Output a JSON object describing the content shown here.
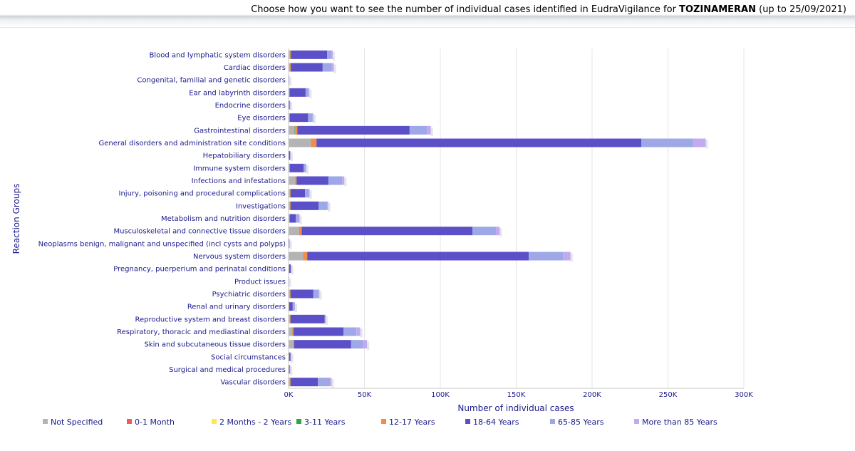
{
  "header": {
    "title_prefix": "Choose how you want to see the number of individual cases identified in EudraVigilance for ",
    "title_product": "TOZINAMERAN",
    "title_suffix": " (up to 25/09/2021)"
  },
  "chart_data": {
    "type": "bar",
    "orientation": "horizontal",
    "stacked": true,
    "title": "",
    "xlabel": "Number of individual cases",
    "ylabel": "Reaction Groups",
    "xlim": [
      0,
      300000
    ],
    "xticks": [
      0,
      50000,
      100000,
      150000,
      200000,
      250000,
      300000
    ],
    "xtick_labels": [
      "0K",
      "50K",
      "100K",
      "150K",
      "200K",
      "250K",
      "300K"
    ],
    "grid": "vertical",
    "legend_position": "bottom",
    "categories": [
      "Blood and lymphatic system disorders",
      "Cardiac disorders",
      "Congenital, familial and genetic disorders",
      "Ear and labyrinth disorders",
      "Endocrine disorders",
      "Eye disorders",
      "Gastrointestinal disorders",
      "General disorders and administration site conditions",
      "Hepatobiliary disorders",
      "Immune system disorders",
      "Infections and infestations",
      "Injury, poisoning and procedural complications",
      "Investigations",
      "Metabolism and nutrition disorders",
      "Musculoskeletal and connective tissue disorders",
      "Neoplasms benign, malignant and unspecified (incl cysts and polyps)",
      "Nervous system disorders",
      "Pregnancy, puerperium and perinatal conditions",
      "Product issues",
      "Psychiatric disorders",
      "Renal and urinary disorders",
      "Reproductive system and breast disorders",
      "Respiratory, thoracic and mediastinal disorders",
      "Skin and subcutaneous tissue disorders",
      "Social circumstances",
      "Surgical and medical procedures",
      "Vascular disorders"
    ],
    "series": [
      {
        "name": "Not Specified",
        "color": "#b4b4b4",
        "values": [
          1000,
          1000,
          100,
          500,
          100,
          500,
          4000,
          15000,
          200,
          500,
          4500,
          1000,
          1000,
          500,
          7000,
          100,
          10000,
          300,
          20,
          1000,
          300,
          1000,
          2500,
          3000,
          300,
          200,
          1000
        ]
      },
      {
        "name": "0-1 Month",
        "color": "#f05a5a",
        "values": [
          20,
          10,
          5,
          5,
          2,
          5,
          30,
          50,
          5,
          10,
          30,
          20,
          10,
          10,
          20,
          2,
          50,
          10,
          2,
          5,
          5,
          5,
          20,
          20,
          5,
          5,
          10
        ]
      },
      {
        "name": "2 Months - 2 Years",
        "color": "#ffe94a",
        "values": [
          10,
          10,
          5,
          5,
          2,
          5,
          20,
          50,
          5,
          10,
          20,
          20,
          10,
          10,
          20,
          2,
          30,
          10,
          2,
          5,
          5,
          5,
          10,
          10,
          5,
          5,
          10
        ]
      },
      {
        "name": "3-11 Years",
        "color": "#2ea83e",
        "values": [
          50,
          50,
          5,
          20,
          5,
          50,
          200,
          300,
          10,
          50,
          100,
          50,
          50,
          50,
          100,
          5,
          200,
          10,
          2,
          50,
          20,
          20,
          100,
          100,
          10,
          10,
          50
        ]
      },
      {
        "name": "12-17 Years",
        "color": "#f58c46",
        "values": [
          400,
          400,
          20,
          200,
          50,
          300,
          1500,
          3000,
          50,
          300,
          600,
          300,
          300,
          200,
          1500,
          20,
          2000,
          50,
          5,
          300,
          100,
          300,
          600,
          600,
          50,
          50,
          300
        ]
      },
      {
        "name": "18-64 Years",
        "color": "#5b50c8",
        "values": [
          24000,
          21000,
          150,
          10500,
          600,
          12000,
          74000,
          214000,
          700,
          9000,
          21000,
          9500,
          18500,
          4000,
          112500,
          300,
          146000,
          1000,
          100,
          15000,
          2300,
          22500,
          33000,
          37500,
          900,
          500,
          18000
        ]
      },
      {
        "name": "65-85 Years",
        "color": "#9ea8e6",
        "values": [
          3000,
          6000,
          50,
          2000,
          200,
          3000,
          11500,
          34000,
          300,
          1500,
          9000,
          2500,
          5500,
          2000,
          15500,
          200,
          22500,
          300,
          20,
          3500,
          1200,
          500,
          8500,
          8000,
          300,
          200,
          8000
        ]
      },
      {
        "name": "More than 85 Years",
        "color": "#c2aaf0",
        "values": [
          600,
          1400,
          20,
          500,
          50,
          500,
          2500,
          8500,
          80,
          300,
          1500,
          500,
          800,
          500,
          2500,
          50,
          5000,
          30,
          5,
          500,
          300,
          20,
          2500,
          2500,
          50,
          50,
          1000
        ]
      }
    ]
  }
}
